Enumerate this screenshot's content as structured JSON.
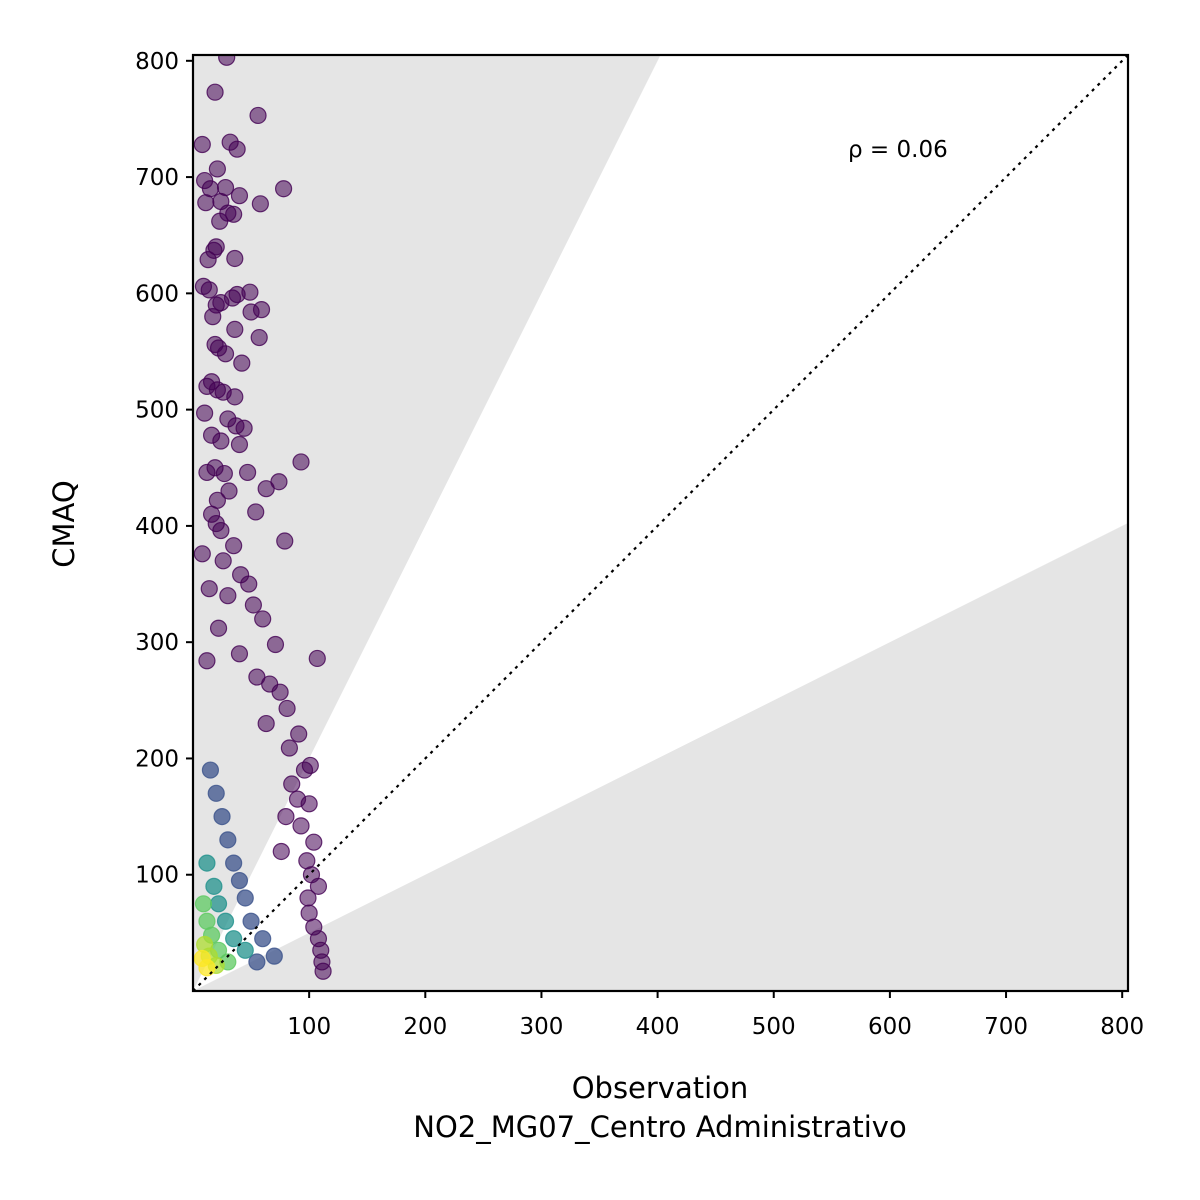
{
  "chart_data": {
    "type": "scatter",
    "xlabel": "Observation",
    "xlabel_line2": "NO2_MG07_Centro Administrativo",
    "ylabel": "CMAQ",
    "xlim": [
      0,
      805
    ],
    "ylim": [
      0,
      805
    ],
    "xticks": [
      100,
      200,
      300,
      400,
      500,
      600,
      700,
      800
    ],
    "yticks": [
      100,
      200,
      300,
      400,
      500,
      600,
      700,
      800
    ],
    "annotation": "ρ = 0.06",
    "reference_line": "1:1 dotted",
    "shaded_regions": [
      "y > 2x",
      "y < 0.5x"
    ],
    "grid": false,
    "legend": "none",
    "colormap": "viridis (point density)",
    "colors": {
      "low_density": "#440154",
      "mid_density": "#21918c",
      "high_density": "#fde725",
      "shade": "#e5e5e5"
    },
    "points": [
      [
        29,
        803,
        0
      ],
      [
        19,
        773,
        0
      ],
      [
        56,
        753,
        0
      ],
      [
        8,
        728,
        0
      ],
      [
        32,
        730,
        0
      ],
      [
        38,
        724,
        0
      ],
      [
        21,
        707,
        0
      ],
      [
        10,
        697,
        0
      ],
      [
        15,
        690,
        0
      ],
      [
        28,
        691,
        0
      ],
      [
        78,
        690,
        0
      ],
      [
        40,
        684,
        0
      ],
      [
        24,
        679,
        0
      ],
      [
        11,
        678,
        0
      ],
      [
        58,
        677,
        0
      ],
      [
        30,
        669,
        0
      ],
      [
        35,
        668,
        0
      ],
      [
        23,
        662,
        0
      ],
      [
        20,
        640,
        0
      ],
      [
        18,
        637,
        0
      ],
      [
        36,
        630,
        0
      ],
      [
        13,
        629,
        0
      ],
      [
        9,
        606,
        0
      ],
      [
        14,
        603,
        0
      ],
      [
        49,
        601,
        0
      ],
      [
        38,
        599,
        0
      ],
      [
        34,
        596,
        0
      ],
      [
        24,
        592,
        0
      ],
      [
        20,
        590,
        0
      ],
      [
        59,
        586,
        0
      ],
      [
        50,
        584,
        0
      ],
      [
        17,
        580,
        0
      ],
      [
        36,
        569,
        0
      ],
      [
        57,
        562,
        0
      ],
      [
        19,
        556,
        0
      ],
      [
        22,
        553,
        0
      ],
      [
        28,
        548,
        0
      ],
      [
        42,
        540,
        0
      ],
      [
        16,
        524,
        0
      ],
      [
        12,
        520,
        0
      ],
      [
        21,
        517,
        0
      ],
      [
        26,
        515,
        0
      ],
      [
        36,
        511,
        0
      ],
      [
        10,
        497,
        0
      ],
      [
        30,
        492,
        0
      ],
      [
        37,
        486,
        0
      ],
      [
        44,
        484,
        0
      ],
      [
        16,
        478,
        0
      ],
      [
        24,
        473,
        0
      ],
      [
        40,
        470,
        0
      ],
      [
        93,
        455,
        0
      ],
      [
        19,
        450,
        0
      ],
      [
        12,
        446,
        0
      ],
      [
        27,
        445,
        0
      ],
      [
        47,
        446,
        0
      ],
      [
        74,
        438,
        0
      ],
      [
        63,
        432,
        0
      ],
      [
        31,
        430,
        0
      ],
      [
        21,
        422,
        0
      ],
      [
        54,
        412,
        0
      ],
      [
        16,
        410,
        0
      ],
      [
        20,
        402,
        0
      ],
      [
        24,
        396,
        0
      ],
      [
        79,
        387,
        0
      ],
      [
        35,
        383,
        0
      ],
      [
        8,
        376,
        0
      ],
      [
        26,
        370,
        0
      ],
      [
        41,
        358,
        0
      ],
      [
        48,
        350,
        0
      ],
      [
        14,
        346,
        0
      ],
      [
        30,
        340,
        0
      ],
      [
        52,
        332,
        0
      ],
      [
        60,
        320,
        0
      ],
      [
        22,
        312,
        0
      ],
      [
        71,
        298,
        0
      ],
      [
        107,
        286,
        0
      ],
      [
        40,
        290,
        0
      ],
      [
        12,
        284,
        0
      ],
      [
        55,
        270,
        0
      ],
      [
        66,
        264,
        0
      ],
      [
        75,
        257,
        0
      ],
      [
        81,
        243,
        0
      ],
      [
        63,
        230,
        0
      ],
      [
        91,
        221,
        0
      ],
      [
        83,
        209,
        0
      ],
      [
        101,
        194,
        0
      ],
      [
        96,
        190,
        0
      ],
      [
        85,
        178,
        0
      ],
      [
        90,
        165,
        0
      ],
      [
        100,
        161,
        0
      ],
      [
        80,
        150,
        0
      ],
      [
        93,
        142,
        0
      ],
      [
        104,
        128,
        0
      ],
      [
        76,
        120,
        0
      ],
      [
        98,
        112,
        0
      ],
      [
        102,
        100,
        0
      ],
      [
        108,
        90,
        0
      ],
      [
        99,
        80,
        0
      ],
      [
        100,
        67,
        0
      ],
      [
        104,
        55,
        0
      ],
      [
        108,
        45,
        0
      ],
      [
        110,
        35,
        0
      ],
      [
        111,
        25,
        0
      ],
      [
        112,
        17,
        0
      ],
      [
        70,
        30,
        1
      ],
      [
        60,
        45,
        1
      ],
      [
        50,
        60,
        1
      ],
      [
        45,
        80,
        1
      ],
      [
        40,
        95,
        1
      ],
      [
        35,
        110,
        1
      ],
      [
        30,
        130,
        1
      ],
      [
        25,
        150,
        1
      ],
      [
        20,
        170,
        1
      ],
      [
        15,
        190,
        1
      ],
      [
        55,
        25,
        1
      ],
      [
        45,
        35,
        2
      ],
      [
        35,
        45,
        2
      ],
      [
        28,
        60,
        2
      ],
      [
        22,
        75,
        2
      ],
      [
        18,
        90,
        2
      ],
      [
        12,
        110,
        2
      ],
      [
        30,
        25,
        3
      ],
      [
        22,
        35,
        3
      ],
      [
        16,
        48,
        3
      ],
      [
        12,
        60,
        3
      ],
      [
        9,
        75,
        3
      ],
      [
        20,
        22,
        4
      ],
      [
        14,
        30,
        4
      ],
      [
        10,
        40,
        4
      ],
      [
        12,
        20,
        5
      ],
      [
        8,
        28,
        5
      ]
    ]
  }
}
